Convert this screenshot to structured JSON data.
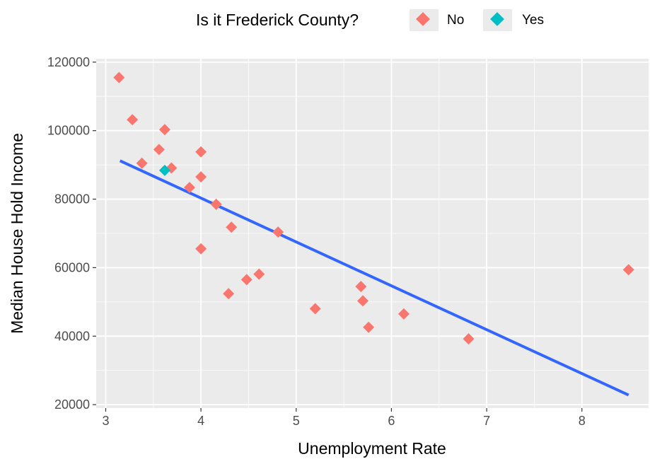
{
  "chart_data": {
    "type": "scatter",
    "xlabel": "Unemployment Rate",
    "ylabel": "Median House Hold Income",
    "xlim": [
      2.9,
      8.7
    ],
    "ylim": [
      19000,
      121000
    ],
    "x_ticks": [
      3,
      4,
      5,
      6,
      7,
      8
    ],
    "y_ticks": [
      20000,
      40000,
      60000,
      80000,
      100000,
      120000
    ],
    "x_tick_labels": [
      "3",
      "4",
      "5",
      "6",
      "7",
      "8"
    ],
    "y_tick_labels": [
      "20000",
      "40000",
      "60000",
      "80000",
      "100000",
      "120000"
    ],
    "grid": true,
    "legend": {
      "title": "Is it Frederick County?",
      "position": "top",
      "entries": [
        {
          "label": "No",
          "color": "#F8766D"
        },
        {
          "label": "Yes",
          "color": "#00BFC4"
        }
      ]
    },
    "series": [
      {
        "name": "No",
        "color": "#F8766D",
        "points": [
          [
            3.14,
            115500
          ],
          [
            3.28,
            103200
          ],
          [
            3.38,
            90500
          ],
          [
            3.56,
            94500
          ],
          [
            3.62,
            100300
          ],
          [
            3.69,
            89100
          ],
          [
            3.88,
            83400
          ],
          [
            4.0,
            93800
          ],
          [
            4.0,
            86500
          ],
          [
            4.0,
            65500
          ],
          [
            4.16,
            78500
          ],
          [
            4.29,
            52400
          ],
          [
            4.32,
            71800
          ],
          [
            4.48,
            56500
          ],
          [
            4.61,
            58100
          ],
          [
            4.81,
            70400
          ],
          [
            5.2,
            48000
          ],
          [
            5.68,
            54500
          ],
          [
            5.7,
            50300
          ],
          [
            5.76,
            42600
          ],
          [
            6.13,
            46500
          ],
          [
            6.81,
            39200
          ],
          [
            8.49,
            59400
          ]
        ]
      },
      {
        "name": "Yes",
        "color": "#00BFC4",
        "points": [
          [
            3.62,
            88400
          ]
        ]
      }
    ],
    "trend_line": {
      "color": "#3366FF",
      "x": [
        3.15,
        8.49
      ],
      "y": [
        91200,
        22800
      ]
    }
  }
}
